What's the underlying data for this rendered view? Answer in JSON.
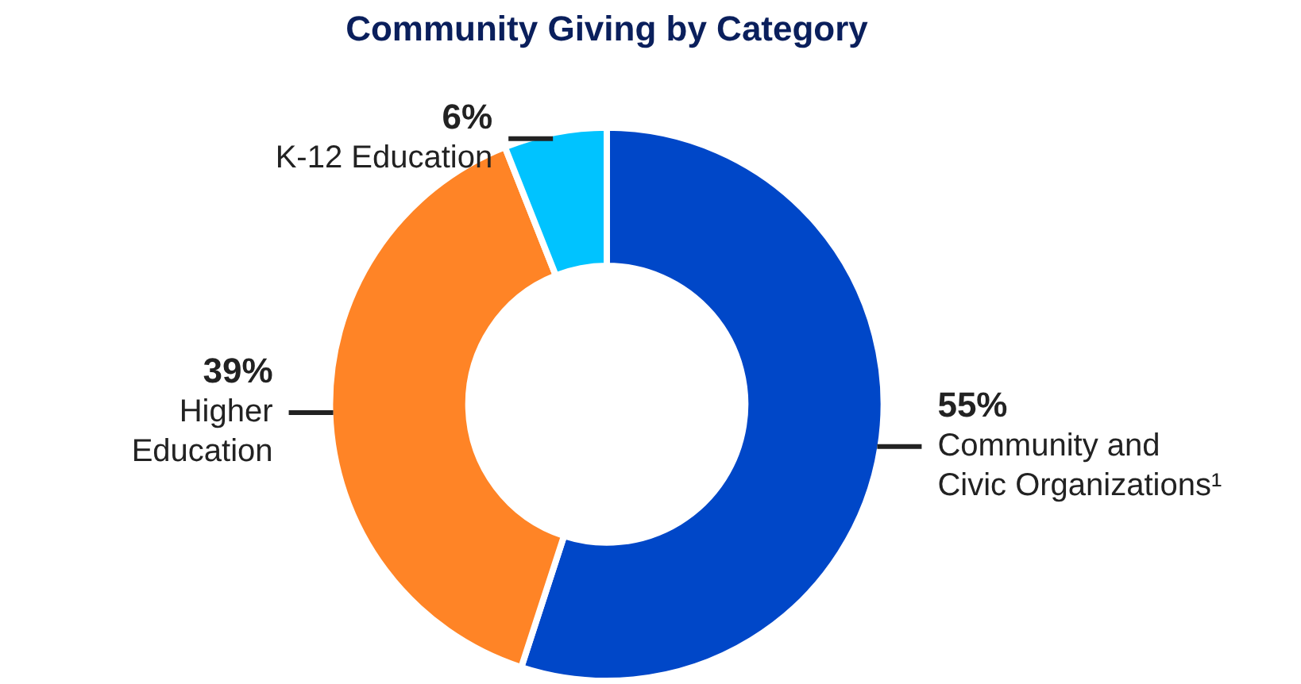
{
  "chart_data": {
    "type": "donut",
    "title": "Community Giving by Category",
    "categories": [
      "Community and Civic Organizations¹",
      "Higher Education",
      "K-12 Education"
    ],
    "values": [
      55,
      39,
      6
    ],
    "value_labels": [
      "55%",
      "39%",
      "6%"
    ],
    "colors": [
      "#0047c8",
      "#ff8426",
      "#00c3ff"
    ],
    "legend": false
  }
}
